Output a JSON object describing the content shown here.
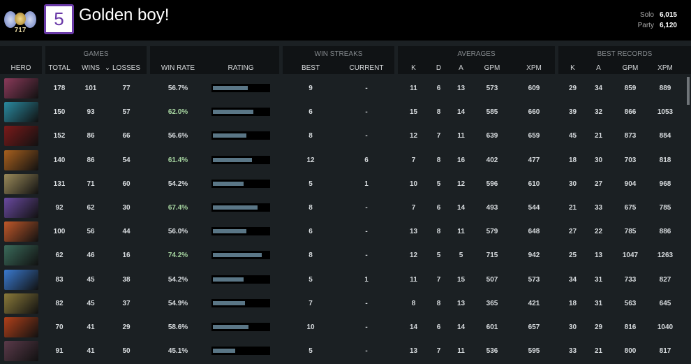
{
  "profile": {
    "medal_number": "717",
    "name": "Golden boy!",
    "logo_text": "5",
    "solo_label": "Solo",
    "solo_value": "6,015",
    "party_label": "Party",
    "party_value": "6,120"
  },
  "headers": {
    "hero": "HERO",
    "games": "GAMES",
    "total": "TOTAL",
    "wins": "WINS",
    "losses": "LOSSES",
    "win_rate": "WIN RATE",
    "rating": "RATING",
    "win_streaks": "WIN STREAKS",
    "best": "BEST",
    "current": "CURRENT",
    "averages": "AVERAGES",
    "k": "K",
    "d": "D",
    "a": "A",
    "gpm": "GPM",
    "xpm": "XPM",
    "best_records": "BEST RECORDS"
  },
  "sort_icon": "chevron-down-icon",
  "rows": [
    {
      "color": "#8a3a5a",
      "total": "178",
      "wins": "101",
      "losses": "77",
      "win_rate": "56.7%",
      "rating": 0.62,
      "best": "9",
      "current": "-",
      "k": "11",
      "d": "6",
      "a": "13",
      "gpm": "573",
      "xpm": "609",
      "bk": "29",
      "ba": "34",
      "bgpm": "859",
      "bxpm": "889"
    },
    {
      "color": "#2a8aa0",
      "total": "150",
      "wins": "93",
      "losses": "57",
      "win_rate": "62.0%",
      "rating": 0.73,
      "best": "6",
      "current": "-",
      "k": "15",
      "d": "8",
      "a": "14",
      "gpm": "585",
      "xpm": "660",
      "bk": "39",
      "ba": "32",
      "bgpm": "866",
      "bxpm": "1053"
    },
    {
      "color": "#7a1a1a",
      "total": "152",
      "wins": "86",
      "losses": "66",
      "win_rate": "56.6%",
      "rating": 0.6,
      "best": "8",
      "current": "-",
      "k": "12",
      "d": "7",
      "a": "11",
      "gpm": "639",
      "xpm": "659",
      "bk": "45",
      "ba": "21",
      "bgpm": "873",
      "bxpm": "884"
    },
    {
      "color": "#a8601e",
      "total": "140",
      "wins": "86",
      "losses": "54",
      "win_rate": "61.4%",
      "rating": 0.7,
      "best": "12",
      "current": "6",
      "k": "7",
      "d": "8",
      "a": "16",
      "gpm": "402",
      "xpm": "477",
      "bk": "18",
      "ba": "30",
      "bgpm": "703",
      "bxpm": "818"
    },
    {
      "color": "#9a8a5a",
      "total": "131",
      "wins": "71",
      "losses": "60",
      "win_rate": "54.2%",
      "rating": 0.55,
      "best": "5",
      "current": "1",
      "k": "10",
      "d": "5",
      "a": "12",
      "gpm": "596",
      "xpm": "610",
      "bk": "30",
      "ba": "27",
      "bgpm": "904",
      "bxpm": "968"
    },
    {
      "color": "#6a4aa0",
      "total": "92",
      "wins": "62",
      "losses": "30",
      "win_rate": "67.4%",
      "rating": 0.8,
      "best": "8",
      "current": "-",
      "k": "7",
      "d": "6",
      "a": "14",
      "gpm": "493",
      "xpm": "544",
      "bk": "21",
      "ba": "33",
      "bgpm": "675",
      "bxpm": "785"
    },
    {
      "color": "#c0582a",
      "total": "100",
      "wins": "56",
      "losses": "44",
      "win_rate": "56.0%",
      "rating": 0.6,
      "best": "6",
      "current": "-",
      "k": "13",
      "d": "8",
      "a": "11",
      "gpm": "579",
      "xpm": "648",
      "bk": "27",
      "ba": "22",
      "bgpm": "785",
      "bxpm": "886"
    },
    {
      "color": "#3a6a5a",
      "total": "62",
      "wins": "46",
      "losses": "16",
      "win_rate": "74.2%",
      "rating": 0.88,
      "best": "8",
      "current": "-",
      "k": "12",
      "d": "5",
      "a": "5",
      "gpm": "715",
      "xpm": "942",
      "bk": "25",
      "ba": "13",
      "bgpm": "1047",
      "bxpm": "1263"
    },
    {
      "color": "#3a7ad0",
      "total": "83",
      "wins": "45",
      "losses": "38",
      "win_rate": "54.2%",
      "rating": 0.55,
      "best": "5",
      "current": "1",
      "k": "11",
      "d": "7",
      "a": "15",
      "gpm": "507",
      "xpm": "573",
      "bk": "34",
      "ba": "31",
      "bgpm": "733",
      "bxpm": "827"
    },
    {
      "color": "#8a7a3a",
      "total": "82",
      "wins": "45",
      "losses": "37",
      "win_rate": "54.9%",
      "rating": 0.57,
      "best": "7",
      "current": "-",
      "k": "8",
      "d": "8",
      "a": "13",
      "gpm": "365",
      "xpm": "421",
      "bk": "18",
      "ba": "31",
      "bgpm": "563",
      "bxpm": "645"
    },
    {
      "color": "#b0401a",
      "total": "70",
      "wins": "41",
      "losses": "29",
      "win_rate": "58.6%",
      "rating": 0.64,
      "best": "10",
      "current": "-",
      "k": "14",
      "d": "6",
      "a": "14",
      "gpm": "601",
      "xpm": "657",
      "bk": "30",
      "ba": "29",
      "bgpm": "816",
      "bxpm": "1040"
    },
    {
      "color": "#5a3a4a",
      "total": "91",
      "wins": "41",
      "losses": "50",
      "win_rate": "45.1%",
      "rating": 0.4,
      "best": "5",
      "current": "-",
      "k": "13",
      "d": "7",
      "a": "11",
      "gpm": "536",
      "xpm": "595",
      "bk": "33",
      "ba": "21",
      "bgpm": "800",
      "bxpm": "817"
    }
  ]
}
